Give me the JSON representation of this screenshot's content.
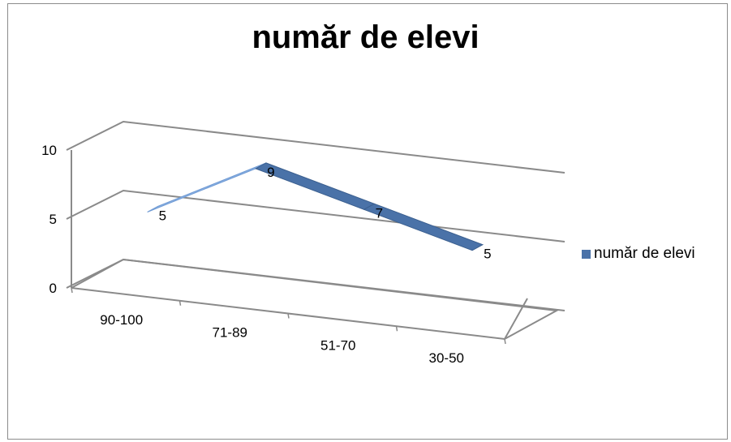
{
  "chart_data": {
    "type": "line",
    "title": "număr de elevi",
    "categories": [
      "90-100",
      "71-89",
      "51-70",
      "30-50"
    ],
    "series": [
      {
        "name": "număr de elevi",
        "values": [
          5,
          9,
          7,
          5
        ],
        "color": "#4a72a8"
      }
    ],
    "yticks": [
      "0",
      "5",
      "10"
    ],
    "ylim": [
      0,
      10
    ],
    "data_labels": true,
    "grid": true,
    "three_d": true,
    "legend_position": "right"
  }
}
